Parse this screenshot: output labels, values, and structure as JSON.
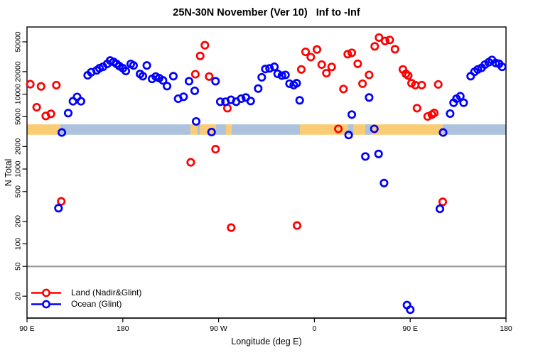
{
  "title": "25N-30N November (Ver 10)   Inf to -Inf",
  "colors": {
    "land": "#FF0000",
    "ocean": "#0000FF",
    "band_land": "#FACD75",
    "band_ocean": "#ADC2DD",
    "reference_line": "#999999",
    "axis": "#000000"
  },
  "chart_data": {
    "type": "scatter",
    "title": "25N-30N November (Ver 10)   Inf to -Inf",
    "xlabel": "Longitude (deg E)",
    "ylabel": "N Total",
    "x_axis": {
      "range": [
        90,
        540
      ],
      "ticks": [
        90,
        180,
        270,
        360,
        450,
        540
      ],
      "tick_labels": [
        "90 E",
        "180",
        "90 W",
        "0",
        "90 E",
        "180"
      ]
    },
    "y_axis": {
      "scale": "log",
      "range": [
        10.2,
        79000
      ],
      "ticks": [
        20,
        50,
        100,
        200,
        500,
        1000,
        2000,
        5000,
        10000,
        20000,
        50000
      ],
      "tick_labels": [
        "20",
        "50",
        "100",
        "200",
        "500",
        "1000",
        "2000",
        "5000",
        "10000",
        "20000",
        "50000"
      ]
    },
    "reference_lines": [
      {
        "value": 50
      },
      {
        "value": 10.2
      }
    ],
    "surface_band": {
      "y_range": [
        2870,
        3950
      ],
      "segments": [
        {
          "from": 90.0,
          "to": 121.4,
          "surface": "land"
        },
        {
          "from": 121.4,
          "to": 243.6,
          "surface": "ocean"
        },
        {
          "from": 243.6,
          "to": 267.6,
          "surface": "land"
        },
        {
          "from": 250.0,
          "to": 252.5,
          "surface": "ocean"
        },
        {
          "from": 267.6,
          "to": 276.9,
          "surface": "ocean"
        },
        {
          "from": 276.9,
          "to": 282.3,
          "surface": "land"
        },
        {
          "from": 282.3,
          "to": 346.4,
          "surface": "ocean"
        },
        {
          "from": 346.4,
          "to": 480.6,
          "surface": "land"
        },
        {
          "from": 391.8,
          "to": 396.5,
          "surface": "ocean"
        },
        {
          "from": 407.8,
          "to": 413.1,
          "surface": "ocean"
        },
        {
          "from": 480.6,
          "to": 540.0,
          "surface": "ocean"
        }
      ]
    },
    "legend": [
      {
        "label": "Land (Nadir&Glint)",
        "color": "#FF0000",
        "series": "land"
      },
      {
        "label": "Ocean (Glint)",
        "color": "#0000FF",
        "series": "ocean"
      }
    ],
    "series": [
      {
        "name": "land",
        "color": "#FF0000",
        "points": [
          [
            93.1,
            13600
          ],
          [
            103.2,
            12700
          ],
          [
            117.6,
            13200
          ],
          [
            99.1,
            6700
          ],
          [
            107.6,
            5120
          ],
          [
            112.5,
            5460
          ],
          [
            122.2,
            370
          ],
          [
            243.8,
            1230
          ],
          [
            248.2,
            18500
          ],
          [
            252.7,
            32400
          ],
          [
            257.1,
            45100
          ],
          [
            261.1,
            17200
          ],
          [
            267.1,
            1840
          ],
          [
            278.3,
            6500
          ],
          [
            281.8,
            165
          ],
          [
            343.7,
            176
          ],
          [
            347.7,
            21400
          ],
          [
            351.7,
            36800
          ],
          [
            356.6,
            31300
          ],
          [
            362.4,
            39500
          ],
          [
            366.9,
            24800
          ],
          [
            371.3,
            19100
          ],
          [
            376.2,
            23100
          ],
          [
            382.5,
            3440
          ],
          [
            387.3,
            11700
          ],
          [
            391.3,
            34200
          ],
          [
            395.1,
            35700
          ],
          [
            400.7,
            25500
          ],
          [
            405.2,
            13800
          ],
          [
            411.4,
            18100
          ],
          [
            416.7,
            43500
          ],
          [
            420.7,
            57000
          ],
          [
            426.4,
            51400
          ],
          [
            430.8,
            53000
          ],
          [
            435.7,
            39900
          ],
          [
            443.1,
            21400
          ],
          [
            445.9,
            18700
          ],
          [
            448.1,
            17700
          ],
          [
            451.3,
            14000
          ],
          [
            454.8,
            13200
          ],
          [
            456.4,
            6500
          ],
          [
            460.8,
            13200
          ],
          [
            466.4,
            5040
          ],
          [
            470.4,
            5340
          ],
          [
            472.6,
            5610
          ],
          [
            476.4,
            13500
          ],
          [
            480.6,
            365
          ]
        ]
      },
      {
        "name": "ocean",
        "color": "#0000FF",
        "points": [
          [
            119.6,
            300
          ],
          [
            122.7,
            3080
          ],
          [
            128.7,
            5580
          ],
          [
            133.2,
            8040
          ],
          [
            137.1,
            9180
          ],
          [
            140.7,
            8040
          ],
          [
            147.0,
            17900
          ],
          [
            150.3,
            19600
          ],
          [
            155.4,
            20800
          ],
          [
            158.1,
            22200
          ],
          [
            161.4,
            23200
          ],
          [
            165.4,
            25400
          ],
          [
            168.1,
            28200
          ],
          [
            171.4,
            27000
          ],
          [
            174.1,
            25400
          ],
          [
            176.8,
            23700
          ],
          [
            180.1,
            22200
          ],
          [
            182.8,
            20400
          ],
          [
            187.5,
            25400
          ],
          [
            190.1,
            24200
          ],
          [
            196.2,
            18600
          ],
          [
            198.8,
            17400
          ],
          [
            202.6,
            24200
          ],
          [
            207.5,
            16000
          ],
          [
            211.0,
            17200
          ],
          [
            214.2,
            16400
          ],
          [
            217.7,
            15300
          ],
          [
            221.5,
            12800
          ],
          [
            227.5,
            17400
          ],
          [
            232.0,
            8710
          ],
          [
            237.1,
            9240
          ],
          [
            242.2,
            14900
          ],
          [
            247.6,
            11100
          ],
          [
            248.9,
            4330
          ],
          [
            263.4,
            3120
          ],
          [
            267.1,
            14900
          ],
          [
            271.6,
            7920
          ],
          [
            276.5,
            7920
          ],
          [
            281.6,
            8400
          ],
          [
            286.5,
            7920
          ],
          [
            291.2,
            8710
          ],
          [
            295.6,
            9030
          ],
          [
            300.1,
            8100
          ],
          [
            307.2,
            11900
          ],
          [
            310.5,
            16800
          ],
          [
            313.9,
            21700
          ],
          [
            317.9,
            22100
          ],
          [
            322.4,
            23200
          ],
          [
            325.5,
            18700
          ],
          [
            329.5,
            17700
          ],
          [
            332.8,
            18100
          ],
          [
            336.6,
            13800
          ],
          [
            340.6,
            13200
          ],
          [
            343.3,
            14000
          ],
          [
            346.2,
            8280
          ],
          [
            392.2,
            2850
          ],
          [
            395.1,
            5340
          ],
          [
            407.9,
            1470
          ],
          [
            411.4,
            9030
          ],
          [
            416.3,
            3440
          ],
          [
            420.3,
            1590
          ],
          [
            425.4,
            650
          ],
          [
            447.0,
            15.2
          ],
          [
            450.1,
            13.2
          ],
          [
            477.9,
            294
          ],
          [
            480.9,
            3080
          ],
          [
            487.5,
            5500
          ],
          [
            490.8,
            7690
          ],
          [
            493.5,
            8710
          ],
          [
            497.1,
            9370
          ],
          [
            500.2,
            7690
          ],
          [
            506.8,
            17400
          ],
          [
            510.4,
            19900
          ],
          [
            513.5,
            21400
          ],
          [
            517.1,
            22500
          ],
          [
            520.2,
            24800
          ],
          [
            523.8,
            26700
          ],
          [
            526.8,
            28700
          ],
          [
            530.4,
            26100
          ],
          [
            533.5,
            25500
          ],
          [
            536.4,
            23200
          ]
        ]
      }
    ]
  }
}
